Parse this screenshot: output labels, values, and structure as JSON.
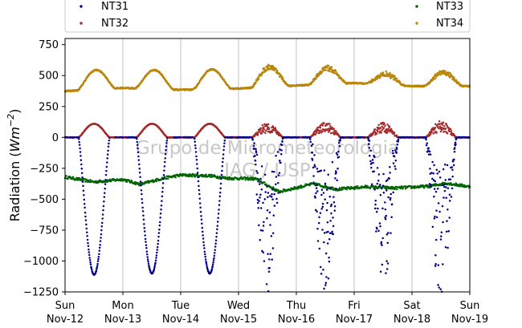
{
  "chart_data": {
    "type": "scatter",
    "ylabel": "Radiation ($Wm^{-2}$)",
    "ylabel_plain": "Radiation (",
    "ylabel_unit_base": "Wm",
    "ylabel_unit_exp": "−2",
    "ylabel_close": ")",
    "ylim": [
      -1250,
      800
    ],
    "yticks": [
      -1250,
      -1000,
      -750,
      -500,
      -250,
      0,
      250,
      500,
      750
    ],
    "ytick_labels": [
      "−1250",
      "−1000",
      "−750",
      "−500",
      "−250",
      "0",
      "250",
      "500",
      "750"
    ],
    "xlim": [
      "2017-11-12",
      "2017-11-19"
    ],
    "xticks": [
      {
        "day": "Sun",
        "date": "Nov-12"
      },
      {
        "day": "Mon",
        "date": "Nov-13"
      },
      {
        "day": "Tue",
        "date": "Nov-14"
      },
      {
        "day": "Wed",
        "date": "Nov-15"
      },
      {
        "day": "Thu",
        "date": "Nov-16"
      },
      {
        "day": "Fri",
        "date": "Nov-17"
      },
      {
        "day": "Sat",
        "date": "Nov-18"
      },
      {
        "day": "Sun",
        "date": "Nov-19"
      }
    ],
    "grid": "vertical",
    "legend_position": "top",
    "watermark": [
      "Grupo de Micrometeorologia",
      "IAG / USP"
    ],
    "series": [
      {
        "name": "NT31",
        "color": "#00008b",
        "baseline": 0,
        "daily_extreme": [
          -1110,
          -1100,
          -1100,
          -1150,
          -1150,
          -1080,
          -1200
        ],
        "noise_from_day": 3
      },
      {
        "name": "NT32",
        "color": "#a52a2a",
        "baseline": 0,
        "daily_extreme": [
          110,
          110,
          110,
          110,
          115,
          110,
          120
        ],
        "noise_from_day": 3
      },
      {
        "name": "NT33",
        "color": "#006400",
        "baseline_points": [
          [
            0,
            -320
          ],
          [
            0.5,
            -360
          ],
          [
            1,
            -340
          ],
          [
            1.3,
            -380
          ],
          [
            1.7,
            -330
          ],
          [
            2.0,
            -305
          ],
          [
            2.5,
            -310
          ],
          [
            2.8,
            -330
          ],
          [
            3.3,
            -335
          ],
          [
            3.7,
            -440
          ],
          [
            4.3,
            -375
          ],
          [
            4.7,
            -420
          ],
          [
            5.2,
            -400
          ],
          [
            5.7,
            -410
          ],
          [
            6.3,
            -395
          ],
          [
            6.6,
            -370
          ],
          [
            7,
            -400
          ]
        ]
      },
      {
        "name": "NT34",
        "color": "#b8860b",
        "night_baseline": [
          375,
          400,
          385,
          395,
          420,
          440,
          415,
          415
        ],
        "daily_peak": [
          545,
          545,
          550,
          570,
          560,
          510,
          525
        ]
      }
    ]
  }
}
